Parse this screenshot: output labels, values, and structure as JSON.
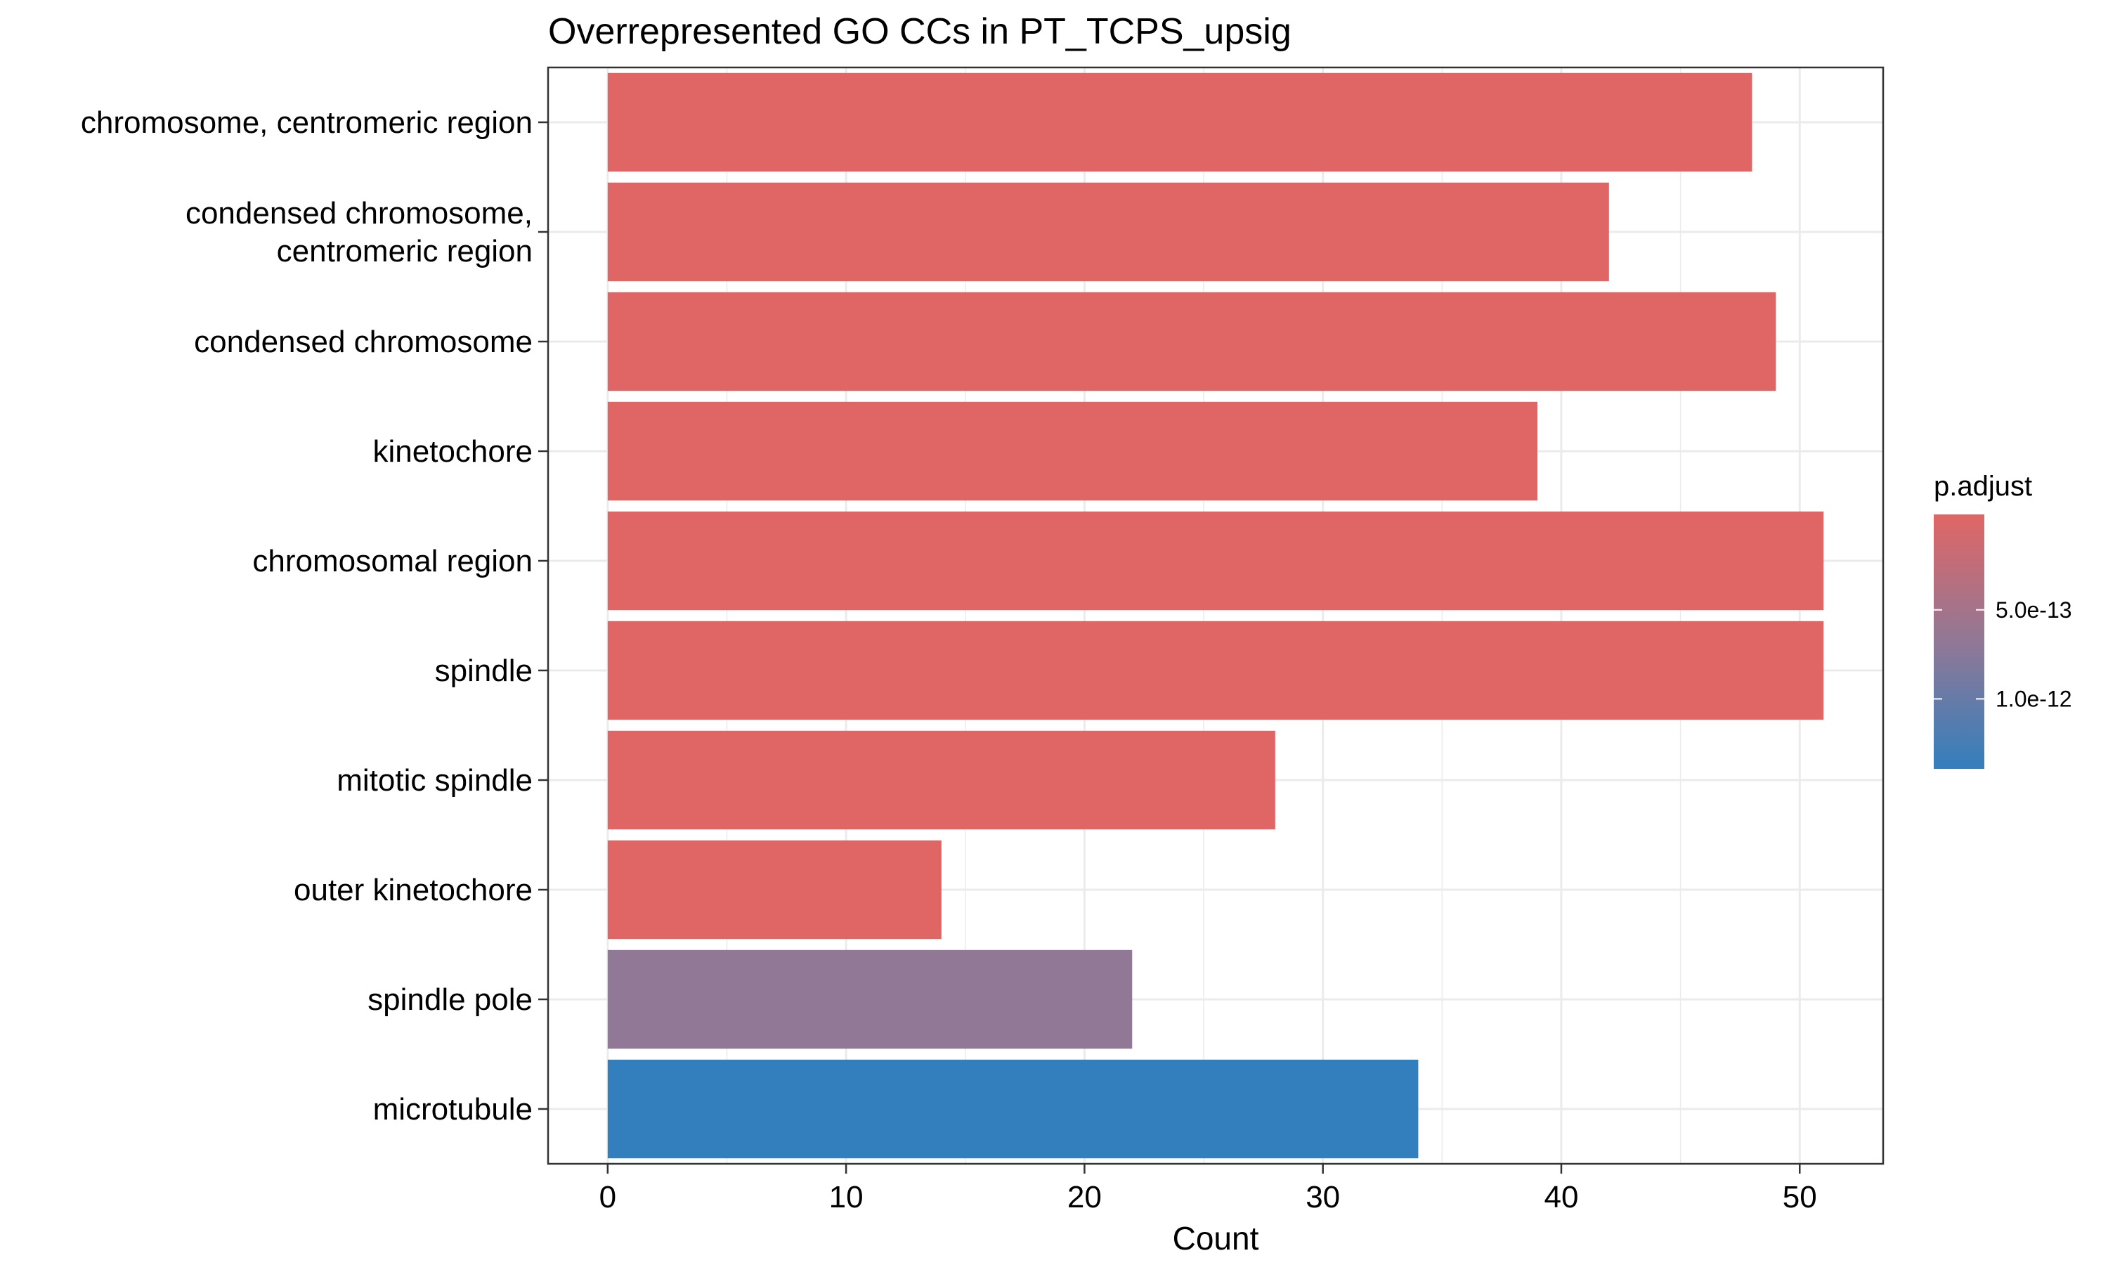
{
  "chart_data": {
    "type": "bar",
    "orientation": "horizontal",
    "title": "Overrepresented GO CCs in PT_TCPS_upsig",
    "xlabel": "Count",
    "ylabel": "",
    "xlim": [
      -2.5,
      53.5
    ],
    "xticks": [
      0,
      10,
      20,
      30,
      40,
      50
    ],
    "grid": true,
    "categories": [
      [
        "chromosome, centromeric region"
      ],
      [
        "condensed chromosome,",
        "centromeric region"
      ],
      [
        "condensed chromosome"
      ],
      [
        "kinetochore"
      ],
      [
        "chromosomal region"
      ],
      [
        "spindle"
      ],
      [
        "mitotic spindle"
      ],
      [
        "outer kinetochore"
      ],
      [
        "spindle pole"
      ],
      [
        "microtubule"
      ]
    ],
    "values": [
      48,
      42,
      49,
      39,
      51,
      51,
      28,
      14,
      22,
      34
    ],
    "bar_colors": [
      "#E06666",
      "#E06666",
      "#E06666",
      "#E06666",
      "#E06666",
      "#E06666",
      "#E06666",
      "#E06666",
      "#917896",
      "#337FBD"
    ],
    "legend": {
      "title": "p.adjust",
      "placement": "right",
      "labels": [
        "5.0e-13",
        "1.0e-12"
      ],
      "gradient_colors": [
        "#E06666",
        "#917896",
        "#337FBD"
      ]
    }
  }
}
